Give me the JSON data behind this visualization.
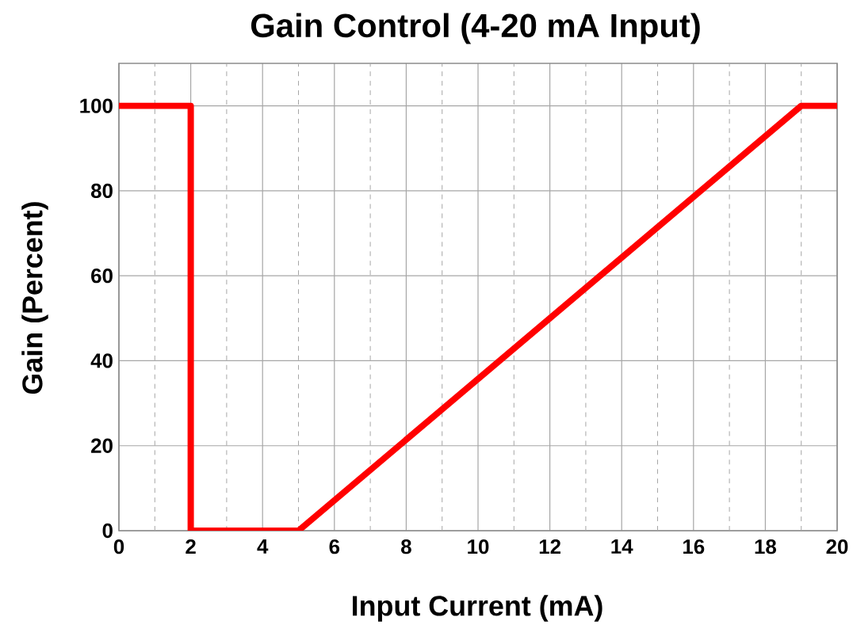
{
  "chart_data": {
    "type": "line",
    "title": "Gain Control (4-20 mA Input)",
    "xlabel": "Input Current (mA)",
    "ylabel": "Gain (Percent)",
    "x": [
      0,
      2,
      2,
      5,
      19,
      20
    ],
    "series": [
      {
        "color": "#ff0000",
        "values": [
          100,
          100,
          0,
          0,
          100,
          100
        ]
      }
    ],
    "xlim": [
      0,
      20
    ],
    "ylim": [
      0,
      110
    ],
    "xticks": [
      0,
      {
        "value": 1,
        "label": null
      },
      2,
      {
        "value": 3,
        "label": null
      },
      4,
      {
        "value": 5,
        "label": null
      },
      6,
      {
        "value": 7,
        "label": null
      },
      8,
      {
        "value": 9,
        "label": null
      },
      10,
      {
        "value": 11,
        "label": null
      },
      12,
      {
        "value": 13,
        "label": null
      },
      14,
      {
        "value": 15,
        "label": null
      },
      16,
      {
        "value": 17,
        "label": null
      },
      18,
      {
        "value": 19,
        "label": null
      },
      20
    ],
    "yticks": [
      0,
      20,
      40,
      60,
      80,
      100
    ],
    "grid": true,
    "marker": "none",
    "line_style": "solid"
  }
}
